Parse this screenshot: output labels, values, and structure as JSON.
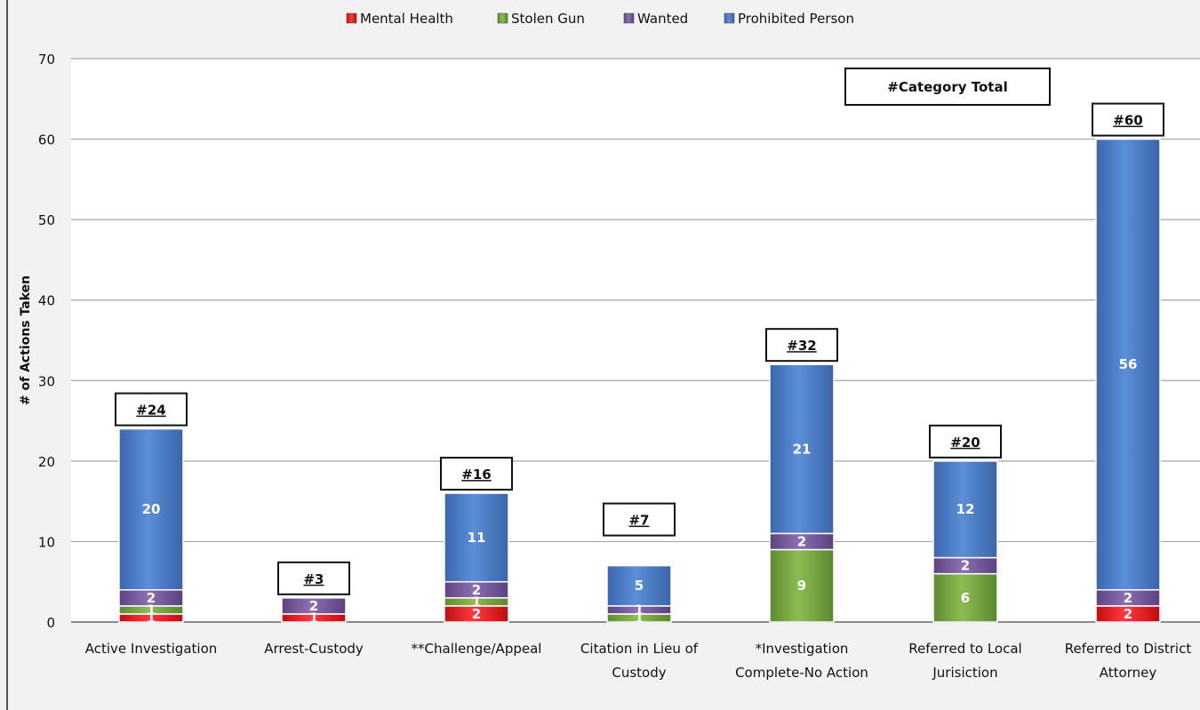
{
  "chart_data": {
    "type": "bar",
    "stacked": true,
    "ylabel": "# of Actions Taken",
    "ylim": [
      0,
      70
    ],
    "yticks": [
      "0",
      "10",
      "20",
      "30",
      "40",
      "50",
      "60",
      "70"
    ],
    "grid": true,
    "legend_position": "top",
    "legend_title": "#Category Total",
    "categories": [
      [
        "Active Investigation"
      ],
      [
        "Arrest-Custody"
      ],
      [
        "**Challenge/Appeal"
      ],
      [
        "Citation in Lieu of",
        "Custody"
      ],
      [
        "*Investigation",
        "Complete-No Action"
      ],
      [
        "Referred to Local",
        "Jurisiction"
      ],
      [
        "Referred to District",
        "Attorney"
      ]
    ],
    "series": [
      {
        "name": "Mental Health",
        "color": "#e8141a",
        "values": [
          1,
          1,
          2,
          0,
          0,
          0,
          2
        ]
      },
      {
        "name": "Stolen Gun",
        "color": "#77a642",
        "values": [
          1,
          0,
          1,
          1,
          9,
          6,
          0
        ]
      },
      {
        "name": "Wanted",
        "color": "#7a5a9c",
        "values": [
          2,
          2,
          2,
          1,
          2,
          2,
          2
        ]
      },
      {
        "name": "Prohibited Person",
        "color": "#4a7dc9",
        "values": [
          20,
          0,
          11,
          5,
          21,
          12,
          56
        ]
      }
    ],
    "totals": [
      "#24",
      "#3",
      "#16",
      "#7",
      "#32",
      "#20",
      "#60"
    ],
    "data_labels": [
      [
        "1",
        "1",
        "2",
        "20"
      ],
      [
        "1",
        "",
        "2",
        ""
      ],
      [
        "2",
        "1",
        "2",
        "11"
      ],
      [
        "",
        "1",
        "1",
        "5"
      ],
      [
        "",
        "9",
        "2",
        "21"
      ],
      [
        "",
        "6",
        "2",
        "12"
      ],
      [
        "2",
        "",
        "2",
        "56"
      ]
    ]
  }
}
